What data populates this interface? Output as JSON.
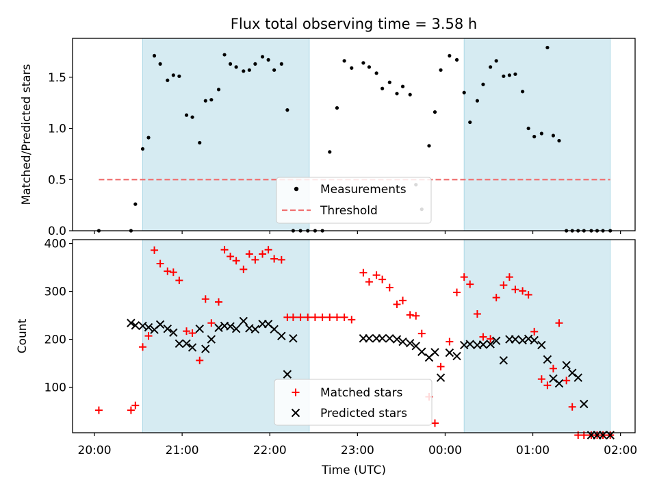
{
  "figure": {
    "title": "Flux total observing time = 3.58 h"
  },
  "colors": {
    "band": "#add8e6",
    "measurement": "#000000",
    "threshold": "#f07070",
    "matched": "#ff0000",
    "predicted": "#000000"
  },
  "chart_data": [
    {
      "type": "scatter",
      "panel": "top",
      "xlabel": "",
      "ylabel": "Matched/Predicted stars",
      "xlim": [
        "19:45",
        "02:10"
      ],
      "ylim": [
        0,
        1.88
      ],
      "yticks": [
        0.0,
        0.5,
        1.0,
        1.5
      ],
      "ytick_labels": [
        "0.0",
        "0.5",
        "1.0",
        "1.5"
      ],
      "shaded_intervals": [
        [
          "20:33",
          "22:27"
        ],
        [
          "00:13",
          "01:53"
        ]
      ],
      "legend": {
        "position": "bottom-center",
        "entries": [
          "Measurements",
          "Threshold"
        ]
      },
      "threshold": {
        "name": "Threshold",
        "y": 0.5,
        "x_range": [
          "20:03",
          "01:53"
        ],
        "style": "dashed"
      },
      "series": [
        {
          "name": "Measurements",
          "marker": "dot",
          "x": [
            "20:03",
            "20:25",
            "20:28",
            "20:33",
            "20:37",
            "20:41",
            "20:45",
            "20:50",
            "20:54",
            "20:58",
            "21:03",
            "21:07",
            "21:12",
            "21:16",
            "21:20",
            "21:25",
            "21:29",
            "21:33",
            "21:37",
            "21:42",
            "21:46",
            "21:50",
            "21:55",
            "21:59",
            "22:03",
            "22:08",
            "22:12",
            "22:16",
            "22:21",
            "22:26",
            "22:31",
            "22:36",
            "22:41",
            "22:46",
            "22:51",
            "22:56",
            "23:04",
            "23:08",
            "23:13",
            "23:17",
            "23:22",
            "23:27",
            "23:31",
            "23:36",
            "23:40",
            "23:44",
            "23:49",
            "23:53",
            "23:57",
            "00:03",
            "00:08",
            "00:13",
            "00:17",
            "00:22",
            "00:26",
            "00:31",
            "00:35",
            "00:40",
            "00:44",
            "00:48",
            "00:53",
            "00:57",
            "01:01",
            "01:06",
            "01:10",
            "01:14",
            "01:18",
            "01:23",
            "01:27",
            "01:31",
            "01:35",
            "01:40",
            "01:44",
            "01:48",
            "01:53"
          ],
          "y": [
            0.0,
            0.0,
            0.26,
            0.8,
            0.91,
            1.71,
            1.63,
            1.47,
            1.52,
            1.51,
            1.13,
            1.11,
            0.86,
            1.27,
            1.28,
            1.38,
            1.72,
            1.63,
            1.6,
            1.56,
            1.57,
            1.63,
            1.7,
            1.67,
            1.57,
            1.63,
            1.18,
            0.0,
            0.0,
            0.0,
            0.0,
            0.0,
            0.77,
            1.2,
            1.66,
            1.59,
            1.64,
            1.6,
            1.54,
            1.39,
            1.45,
            1.34,
            1.41,
            1.33,
            0.45,
            0.21,
            0.83,
            1.16,
            1.57,
            1.71,
            1.67,
            1.35,
            1.06,
            1.27,
            1.43,
            1.6,
            1.66,
            1.51,
            1.52,
            1.53,
            1.36,
            1.0,
            0.92,
            0.95,
            1.79,
            0.93,
            0.88,
            0.0,
            0.0,
            0.0,
            0.0,
            0.0,
            0.0,
            0.0,
            0.0
          ]
        }
      ]
    },
    {
      "type": "scatter",
      "panel": "bottom",
      "xlabel": "Time (UTC)",
      "ylabel": "Count",
      "xlim": [
        "19:45",
        "02:10"
      ],
      "ylim": [
        5,
        408
      ],
      "yticks": [
        100,
        200,
        300,
        400
      ],
      "ytick_labels": [
        "100",
        "200",
        "300",
        "400"
      ],
      "xticks": [
        "20:00",
        "21:00",
        "22:00",
        "23:00",
        "00:00",
        "01:00",
        "02:00"
      ],
      "xtick_labels": [
        "20:00",
        "21:00",
        "22:00",
        "23:00",
        "00:00",
        "01:00",
        "02:00"
      ],
      "shaded_intervals": [
        [
          "20:33",
          "22:27"
        ],
        [
          "00:13",
          "01:53"
        ]
      ],
      "legend": {
        "position": "bottom-center",
        "entries": [
          "Matched stars",
          "Predicted stars"
        ]
      },
      "series": [
        {
          "name": "Matched stars",
          "marker": "plus",
          "x": [
            "20:03",
            "20:25",
            "20:28",
            "20:33",
            "20:37",
            "20:41",
            "20:45",
            "20:50",
            "20:54",
            "20:58",
            "21:03",
            "21:07",
            "21:12",
            "21:16",
            "21:20",
            "21:25",
            "21:29",
            "21:33",
            "21:37",
            "21:42",
            "21:46",
            "21:50",
            "21:55",
            "21:59",
            "22:03",
            "22:08",
            "22:12",
            "22:16",
            "22:21",
            "22:26",
            "22:31",
            "22:36",
            "22:41",
            "22:46",
            "22:51",
            "22:56",
            "23:04",
            "23:08",
            "23:13",
            "23:17",
            "23:22",
            "23:27",
            "23:31",
            "23:36",
            "23:40",
            "23:44",
            "23:49",
            "23:53",
            "23:57",
            "00:03",
            "00:08",
            "00:13",
            "00:17",
            "00:22",
            "00:26",
            "00:31",
            "00:35",
            "00:40",
            "00:44",
            "00:48",
            "00:53",
            "00:57",
            "01:01",
            "01:06",
            "01:10",
            "01:14",
            "01:18",
            "01:23",
            "01:27",
            "01:31",
            "01:35",
            "01:40",
            "01:44",
            "01:48",
            "01:53"
          ],
          "y": [
            52,
            52,
            62,
            184,
            207,
            386,
            358,
            342,
            340,
            323,
            217,
            213,
            156,
            284,
            234,
            278,
            387,
            373,
            364,
            346,
            378,
            366,
            378,
            387,
            368,
            366,
            246,
            246,
            246,
            246,
            246,
            246,
            246,
            246,
            246,
            241,
            339,
            320,
            334,
            325,
            308,
            273,
            281,
            251,
            249,
            212,
            80,
            25,
            143,
            195,
            298,
            330,
            315,
            253,
            205,
            201,
            287,
            313,
            330,
            304,
            301,
            293,
            216,
            117,
            104,
            139,
            234,
            114,
            59,
            0,
            0,
            0,
            0,
            0,
            0
          ]
        },
        {
          "name": "Predicted stars",
          "marker": "x",
          "x": [
            "20:25",
            "20:28",
            "20:33",
            "20:37",
            "20:41",
            "20:45",
            "20:50",
            "20:54",
            "20:58",
            "21:03",
            "21:07",
            "21:12",
            "21:16",
            "21:20",
            "21:25",
            "21:29",
            "21:33",
            "21:37",
            "21:42",
            "21:46",
            "21:50",
            "21:55",
            "21:59",
            "22:03",
            "22:08",
            "22:12",
            "22:16",
            "23:04",
            "23:08",
            "23:13",
            "23:17",
            "23:22",
            "23:27",
            "23:31",
            "23:36",
            "23:40",
            "23:44",
            "23:49",
            "23:53",
            "23:57",
            "00:03",
            "00:08",
            "00:13",
            "00:17",
            "00:22",
            "00:26",
            "00:31",
            "00:35",
            "00:40",
            "00:44",
            "00:48",
            "00:53",
            "00:57",
            "01:01",
            "01:06",
            "01:10",
            "01:14",
            "01:18",
            "01:23",
            "01:27",
            "01:31",
            "01:35",
            "01:40",
            "01:44",
            "01:48",
            "01:53"
          ],
          "y": [
            234,
            229,
            228,
            225,
            220,
            231,
            222,
            214,
            191,
            191,
            183,
            222,
            180,
            200,
            224,
            228,
            227,
            222,
            238,
            223,
            221,
            232,
            232,
            221,
            207,
            127,
            202,
            202,
            202,
            202,
            202,
            202,
            200,
            195,
            192,
            186,
            174,
            162,
            173,
            120,
            172,
            165,
            188,
            190,
            188,
            189,
            190,
            197,
            156,
            200,
            200,
            198,
            201,
            198,
            188,
            158,
            118,
            108,
            146,
            130,
            120,
            65,
            0,
            0,
            0,
            0
          ],
          "n_visible": 62
        }
      ]
    }
  ]
}
